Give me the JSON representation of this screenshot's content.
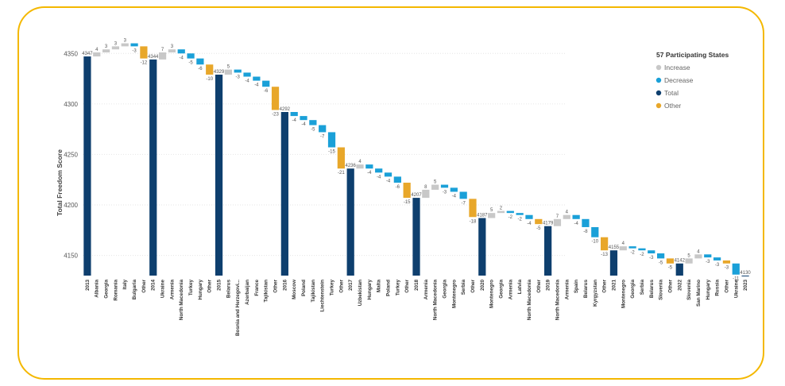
{
  "chart_data": {
    "type": "waterfall",
    "ylabel": "Total Freedom Score",
    "legend": {
      "title": "57 Participating States",
      "items": [
        {
          "label": "Increase",
          "color": "#c8c8c8"
        },
        {
          "label": "Decrease",
          "color": "#1aa0d8"
        },
        {
          "label": "Total",
          "color": "#0e3f6e"
        },
        {
          "label": "Other",
          "color": "#e8a72a"
        }
      ],
      "position": "top-right"
    },
    "ylim": [
      4130,
      4362
    ],
    "yticks": [
      4150,
      4200,
      4250,
      4300,
      4350
    ],
    "grid": true,
    "steps": [
      {
        "label": "2013",
        "kind": "total",
        "value": 4347
      },
      {
        "label": "Albania",
        "kind": "increase",
        "value": 4
      },
      {
        "label": "Georgia",
        "kind": "increase",
        "value": 3
      },
      {
        "label": "Romania",
        "kind": "increase",
        "value": 3
      },
      {
        "label": "Italy",
        "kind": "increase",
        "value": 3
      },
      {
        "label": "Bulgaria",
        "kind": "decrease",
        "value": -3
      },
      {
        "label": "Other",
        "kind": "other",
        "value": -12
      },
      {
        "label": "2014",
        "kind": "total",
        "value": 4344
      },
      {
        "label": "Ukraine",
        "kind": "increase",
        "value": 7
      },
      {
        "label": "Armenia",
        "kind": "increase",
        "value": 3
      },
      {
        "label": "North Macedonia",
        "kind": "decrease",
        "value": -4
      },
      {
        "label": "Turkey",
        "kind": "decrease",
        "value": -5
      },
      {
        "label": "Hungary",
        "kind": "decrease",
        "value": -6
      },
      {
        "label": "Other",
        "kind": "other",
        "value": -10
      },
      {
        "label": "2015",
        "kind": "total",
        "value": 4329
      },
      {
        "label": "Belarus",
        "kind": "increase",
        "value": 5
      },
      {
        "label": "Bosnia and Herzegovi...",
        "kind": "decrease",
        "value": -3
      },
      {
        "label": "Azerbaijan",
        "kind": "decrease",
        "value": -4
      },
      {
        "label": "France",
        "kind": "decrease",
        "value": -4
      },
      {
        "label": "Tajikistan",
        "kind": "decrease",
        "value": -6
      },
      {
        "label": "Other",
        "kind": "other",
        "value": -23
      },
      {
        "label": "2016",
        "kind": "total",
        "value": 4292
      },
      {
        "label": "Moscow",
        "kind": "decrease",
        "value": -4
      },
      {
        "label": "Poland",
        "kind": "decrease",
        "value": -4
      },
      {
        "label": "Tajikistan",
        "kind": "decrease",
        "value": -5
      },
      {
        "label": "Liechtenstein",
        "kind": "decrease",
        "value": -7
      },
      {
        "label": "Turkey",
        "kind": "decrease",
        "value": -15
      },
      {
        "label": "Other",
        "kind": "other",
        "value": -21
      },
      {
        "label": "2017",
        "kind": "total",
        "value": 4236
      },
      {
        "label": "Uzbekistan",
        "kind": "increase",
        "value": 4
      },
      {
        "label": "Hungary",
        "kind": "decrease",
        "value": -4
      },
      {
        "label": "Malta",
        "kind": "decrease",
        "value": -4
      },
      {
        "label": "Poland",
        "kind": "decrease",
        "value": -4
      },
      {
        "label": "Turkey",
        "kind": "decrease",
        "value": -6
      },
      {
        "label": "Other",
        "kind": "other",
        "value": -15
      },
      {
        "label": "2018",
        "kind": "total",
        "value": 4207
      },
      {
        "label": "Armenia",
        "kind": "increase",
        "value": 8
      },
      {
        "label": "North Macedonia",
        "kind": "increase",
        "value": 5
      },
      {
        "label": "Georgia",
        "kind": "decrease",
        "value": -3
      },
      {
        "label": "Montenegro",
        "kind": "decrease",
        "value": -4
      },
      {
        "label": "Serbia",
        "kind": "decrease",
        "value": -7
      },
      {
        "label": "Other",
        "kind": "other",
        "value": -18
      },
      {
        "label": "2020",
        "kind": "total",
        "value": 4187
      },
      {
        "label": "Montenegro",
        "kind": "increase",
        "value": 5
      },
      {
        "label": "Georgia",
        "kind": "increase",
        "value": 2
      },
      {
        "label": "Armenia",
        "kind": "decrease",
        "value": -2
      },
      {
        "label": "Latvia",
        "kind": "decrease",
        "value": -2
      },
      {
        "label": "North Macedonia",
        "kind": "decrease",
        "value": -4
      },
      {
        "label": "Other",
        "kind": "other",
        "value": -5
      },
      {
        "label": "2019",
        "kind": "total",
        "value": 4179
      },
      {
        "label": "North Macedonia",
        "kind": "increase",
        "value": 7
      },
      {
        "label": "Armenia",
        "kind": "increase",
        "value": 4
      },
      {
        "label": "Spain",
        "kind": "decrease",
        "value": -4
      },
      {
        "label": "Belarus",
        "kind": "decrease",
        "value": -8
      },
      {
        "label": "Kyrgyzstan",
        "kind": "decrease",
        "value": -10
      },
      {
        "label": "Other",
        "kind": "other",
        "value": -13
      },
      {
        "label": "2021",
        "kind": "total",
        "value": 4155
      },
      {
        "label": "Montenegro",
        "kind": "increase",
        "value": 4
      },
      {
        "label": "Georgia",
        "kind": "decrease",
        "value": -2
      },
      {
        "label": "Serbia",
        "kind": "decrease",
        "value": -2
      },
      {
        "label": "Belarus",
        "kind": "decrease",
        "value": -3
      },
      {
        "label": "Slovenia",
        "kind": "decrease",
        "value": -5
      },
      {
        "label": "Other",
        "kind": "other",
        "value": -5
      },
      {
        "label": "2022",
        "kind": "total",
        "value": 4142
      },
      {
        "label": "Slovenia",
        "kind": "increase",
        "value": 5
      },
      {
        "label": "San Marino",
        "kind": "increase",
        "value": 4
      },
      {
        "label": "Hungary",
        "kind": "decrease",
        "value": -3
      },
      {
        "label": "Russia",
        "kind": "decrease",
        "value": -3
      },
      {
        "label": "Other",
        "kind": "other",
        "value": -3
      },
      {
        "label": "Ukraine",
        "kind": "decrease",
        "value": -11
      },
      {
        "label": "2023",
        "kind": "total",
        "value": 4130
      }
    ]
  }
}
